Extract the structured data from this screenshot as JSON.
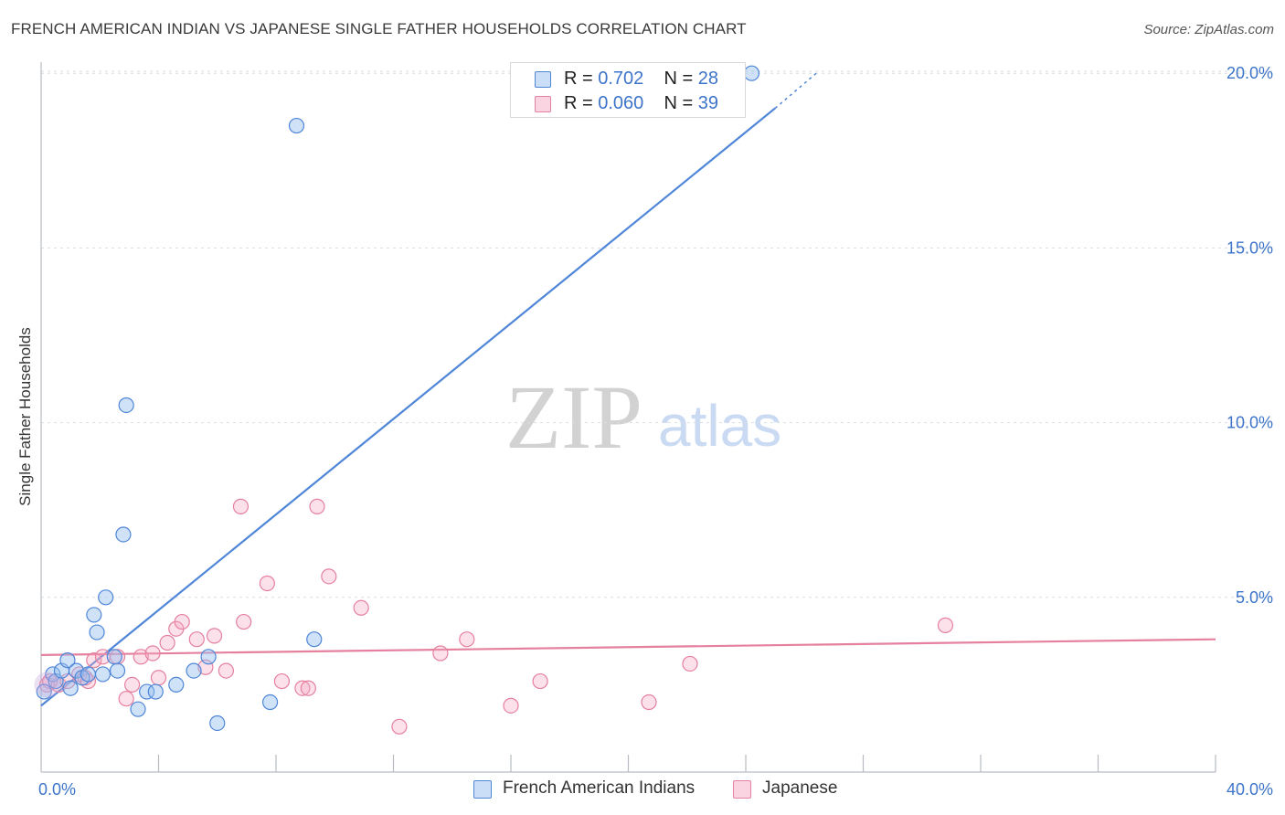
{
  "title": "FRENCH AMERICAN INDIAN VS JAPANESE SINGLE FATHER HOUSEHOLDS CORRELATION CHART",
  "source": "Source: ZipAtlas.com",
  "watermark": {
    "zip": "ZIP",
    "atlas": "atlas"
  },
  "legend_top": [
    {
      "r_label": "R =",
      "r_value": "0.702",
      "n_label": "N =",
      "n_value": "28",
      "color": "#4f86d8"
    },
    {
      "r_label": "R =",
      "r_value": "0.060",
      "n_label": "N =",
      "n_value": "39",
      "color": "#e5809f"
    }
  ],
  "legend_bottom": [
    {
      "label": "French American Indians",
      "color": "#4f86d8"
    },
    {
      "label": "Japanese",
      "color": "#e5809f"
    }
  ],
  "chart_data": {
    "type": "scatter",
    "title": "FRENCH AMERICAN INDIAN VS JAPANESE SINGLE FATHER HOUSEHOLDS CORRELATION CHART",
    "xlabel": "",
    "ylabel": "Single Father Households",
    "xlim": [
      0,
      40
    ],
    "ylim": [
      0,
      20.5
    ],
    "x_tick_labels": [
      "0.0%",
      "40.0%"
    ],
    "y_ticks": [
      {
        "value": 5,
        "label": "5.0%"
      },
      {
        "value": 10,
        "label": "10.0%"
      },
      {
        "value": 15,
        "label": "15.0%"
      },
      {
        "value": 20,
        "label": "20.0%"
      }
    ],
    "grid": true,
    "series": [
      {
        "name": "French American Indians",
        "color": "#4f86d8",
        "r": 0.702,
        "n": 28,
        "points": [
          [
            0.1,
            2.3
          ],
          [
            0.4,
            2.8
          ],
          [
            0.5,
            2.6
          ],
          [
            0.7,
            2.9
          ],
          [
            0.9,
            3.2
          ],
          [
            1.0,
            2.4
          ],
          [
            1.2,
            2.9
          ],
          [
            1.4,
            2.7
          ],
          [
            1.6,
            2.8
          ],
          [
            1.8,
            4.5
          ],
          [
            1.9,
            4.0
          ],
          [
            2.1,
            2.8
          ],
          [
            2.2,
            5.0
          ],
          [
            2.5,
            3.3
          ],
          [
            2.6,
            2.9
          ],
          [
            2.8,
            6.8
          ],
          [
            2.9,
            10.5
          ],
          [
            3.3,
            1.8
          ],
          [
            3.6,
            2.3
          ],
          [
            3.9,
            2.3
          ],
          [
            4.6,
            2.5
          ],
          [
            5.2,
            2.9
          ],
          [
            5.7,
            3.3
          ],
          [
            6.0,
            1.4
          ],
          [
            7.8,
            2.0
          ],
          [
            8.7,
            18.5
          ],
          [
            9.3,
            3.8
          ],
          [
            24.2,
            20.0
          ]
        ],
        "trend": {
          "x0": 0,
          "y0": 1.9,
          "x1": 25.0,
          "y1": 19.0,
          "dash_to_x": 26.4,
          "dash_to_y": 20.0
        }
      },
      {
        "name": "Japanese",
        "color": "#e5809f",
        "r": 0.06,
        "n": 39,
        "points": [
          [
            0.2,
            2.5
          ],
          [
            0.3,
            2.6
          ],
          [
            0.6,
            2.5
          ],
          [
            0.9,
            2.6
          ],
          [
            1.3,
            2.8
          ],
          [
            1.5,
            2.7
          ],
          [
            1.6,
            2.6
          ],
          [
            1.8,
            3.2
          ],
          [
            2.1,
            3.3
          ],
          [
            2.6,
            3.3
          ],
          [
            2.9,
            2.1
          ],
          [
            3.1,
            2.5
          ],
          [
            3.4,
            3.3
          ],
          [
            3.8,
            3.4
          ],
          [
            4.0,
            2.7
          ],
          [
            4.3,
            3.7
          ],
          [
            4.6,
            4.1
          ],
          [
            4.8,
            4.3
          ],
          [
            5.3,
            3.8
          ],
          [
            5.6,
            3.0
          ],
          [
            5.9,
            3.9
          ],
          [
            6.3,
            2.9
          ],
          [
            6.8,
            7.6
          ],
          [
            6.9,
            4.3
          ],
          [
            7.7,
            5.4
          ],
          [
            8.2,
            2.6
          ],
          [
            8.9,
            2.4
          ],
          [
            9.1,
            2.4
          ],
          [
            9.4,
            7.6
          ],
          [
            9.8,
            5.6
          ],
          [
            10.9,
            4.7
          ],
          [
            12.2,
            1.3
          ],
          [
            13.6,
            3.4
          ],
          [
            14.5,
            3.8
          ],
          [
            16.0,
            1.9
          ],
          [
            17.0,
            2.6
          ],
          [
            20.7,
            2.0
          ],
          [
            22.1,
            3.1
          ],
          [
            30.8,
            4.2
          ]
        ],
        "trend": {
          "x0": 0,
          "y0": 3.35,
          "x1": 40,
          "y1": 3.8
        }
      }
    ]
  }
}
